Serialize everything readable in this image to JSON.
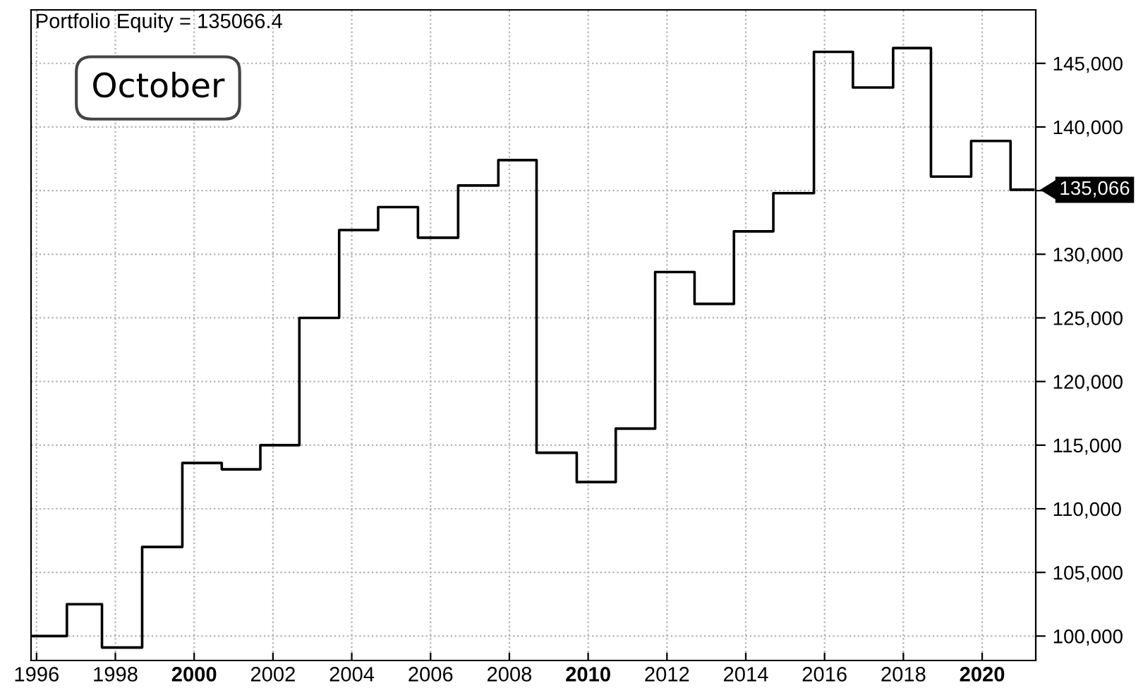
{
  "chart_data": {
    "type": "step",
    "title": "Portfolio Equity = 135066.4",
    "x": [
      1995.86,
      1996.77,
      1997.66,
      1998.68,
      1999.7,
      2000.7,
      2001.68,
      2002.67,
      2003.68,
      2004.67,
      2005.68,
      2006.7,
      2007.72,
      2008.69,
      2009.71,
      2010.7,
      2011.7,
      2012.7,
      2013.7,
      2014.7,
      2015.73,
      2016.72,
      2017.74,
      2018.7,
      2019.72,
      2020.72,
      2021.3
    ],
    "series": [
      {
        "color": "#000000",
        "values": [
          100000,
          102500,
          99100,
          107000,
          113600,
          113100,
          115000,
          125000,
          131900,
          133700,
          131300,
          135400,
          137400,
          114400,
          112100,
          116300,
          128600,
          126100,
          131800,
          134800,
          145900,
          143100,
          146200,
          136100,
          138900,
          135066.4,
          135066.4
        ]
      }
    ],
    "xlim": [
      1995.86,
      2021.36
    ],
    "xticks": [
      1996,
      1998,
      2000,
      2002,
      2004,
      2006,
      2008,
      2010,
      2012,
      2014,
      2016,
      2018,
      2020
    ],
    "ylim": [
      98080,
      149200
    ],
    "yticks": [
      {
        "value": 100000,
        "label": "100,000"
      },
      {
        "value": 105000,
        "label": "105,000"
      },
      {
        "value": 110000,
        "label": "110,000"
      },
      {
        "value": 115000,
        "label": "115,000"
      },
      {
        "value": 120000,
        "label": "120,000"
      },
      {
        "value": 125000,
        "label": "125,000"
      },
      {
        "value": 130000,
        "label": "130,000"
      },
      {
        "value": 135000,
        "label": null
      },
      {
        "value": 140000,
        "label": "140,000"
      },
      {
        "value": 145000,
        "label": "145,000"
      }
    ],
    "grid": true,
    "annotations": [
      "October",
      {
        "text": "135,066",
        "x": 2021.36,
        "y": 135066.4
      }
    ]
  }
}
